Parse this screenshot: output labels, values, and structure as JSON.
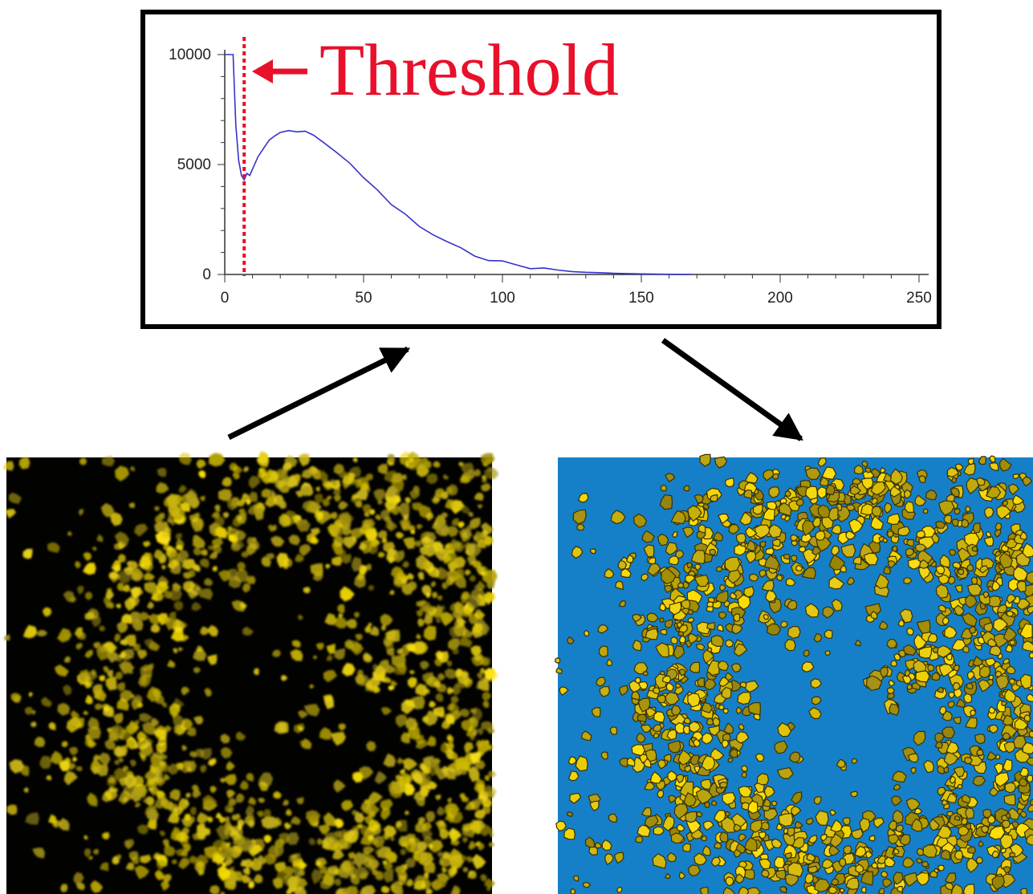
{
  "annotation": {
    "threshold_label": "Threshold",
    "threshold_color": "#e8102a"
  },
  "chart_data": {
    "type": "line",
    "title": "",
    "xlabel": "",
    "ylabel": "",
    "xlim": [
      0,
      250
    ],
    "ylim": [
      0,
      10000
    ],
    "x_ticks": [
      0,
      50,
      100,
      150,
      200,
      250
    ],
    "y_ticks": [
      0,
      5000,
      10000
    ],
    "grid": false,
    "threshold_x": 7,
    "series": [
      {
        "color": "#3333cc",
        "x": [
          0,
          3,
          4,
          5,
          6,
          7,
          8,
          9,
          10,
          12,
          14,
          16,
          18,
          20,
          23,
          26,
          29,
          32,
          36,
          40,
          45,
          50,
          55,
          60,
          65,
          70,
          75,
          80,
          85,
          90,
          95,
          100,
          105,
          110,
          115,
          120,
          125,
          130,
          135,
          140,
          145,
          150,
          155,
          160,
          165,
          168
        ],
        "y": [
          10000,
          10000,
          6800,
          5200,
          4500,
          4300,
          4600,
          4500,
          4800,
          5300,
          5700,
          6100,
          6300,
          6400,
          6600,
          6500,
          6500,
          6300,
          6000,
          5600,
          5000,
          4400,
          3800,
          3200,
          2700,
          2200,
          1800,
          1450,
          1150,
          900,
          700,
          560,
          430,
          330,
          250,
          190,
          140,
          100,
          80,
          55,
          40,
          25,
          15,
          8,
          4,
          0
        ]
      }
    ]
  },
  "colors": {
    "frame": "#000000",
    "raw_background": "#020200",
    "cell_yellow": "#e6d21e",
    "segmented_background": "#1580c8",
    "segmented_cell": "#d4c21a",
    "cell_outline": "#3a3000"
  }
}
